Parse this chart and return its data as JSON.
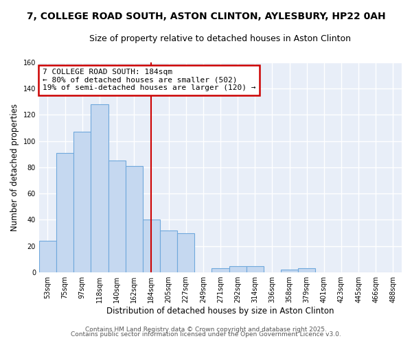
{
  "title": "7, COLLEGE ROAD SOUTH, ASTON CLINTON, AYLESBURY, HP22 0AH",
  "subtitle": "Size of property relative to detached houses in Aston Clinton",
  "xlabel": "Distribution of detached houses by size in Aston Clinton",
  "ylabel": "Number of detached properties",
  "bar_labels": [
    "53sqm",
    "75sqm",
    "97sqm",
    "118sqm",
    "140sqm",
    "162sqm",
    "184sqm",
    "205sqm",
    "227sqm",
    "249sqm",
    "271sqm",
    "292sqm",
    "314sqm",
    "336sqm",
    "358sqm",
    "379sqm",
    "401sqm",
    "423sqm",
    "445sqm",
    "466sqm",
    "488sqm"
  ],
  "bar_values": [
    24,
    91,
    107,
    128,
    85,
    81,
    40,
    32,
    30,
    0,
    3,
    5,
    5,
    0,
    2,
    3,
    0,
    0,
    0,
    0,
    0
  ],
  "bar_color": "#c5d8f0",
  "bar_edge_color": "#6fa8dc",
  "highlight_index": 6,
  "highlight_color": "#cc0000",
  "annotation_lines": [
    "7 COLLEGE ROAD SOUTH: 184sqm",
    "← 80% of detached houses are smaller (502)",
    "19% of semi-detached houses are larger (120) →"
  ],
  "annotation_box_color": "#ffffff",
  "annotation_box_edge_color": "#cc0000",
  "ylim": [
    0,
    160
  ],
  "yticks": [
    0,
    20,
    40,
    60,
    80,
    100,
    120,
    140,
    160
  ],
  "footer_line1": "Contains HM Land Registry data © Crown copyright and database right 2025.",
  "footer_line2": "Contains public sector information licensed under the Open Government Licence v3.0.",
  "bg_color": "#ffffff",
  "plot_bg_color": "#e8eef8",
  "grid_color": "#ffffff",
  "title_fontsize": 10,
  "subtitle_fontsize": 9,
  "axis_label_fontsize": 8.5,
  "tick_fontsize": 7,
  "annotation_fontsize": 8,
  "footer_fontsize": 6.5
}
